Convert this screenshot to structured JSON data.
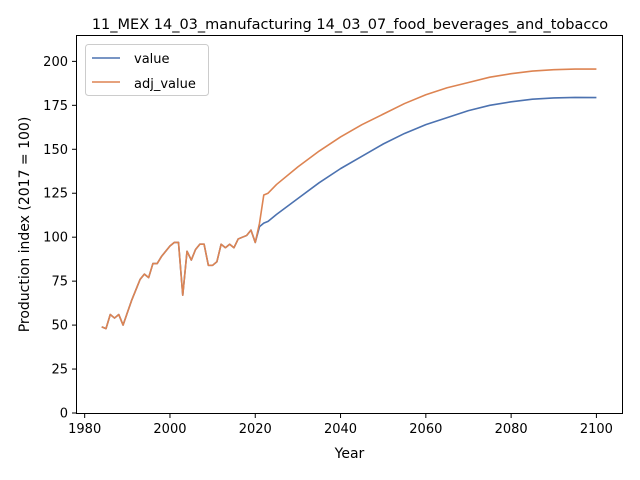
{
  "chart_data": {
    "type": "line",
    "title": "11_MEX 14_03_manufacturing 14_03_07_food_beverages_and_tobacco",
    "xlabel": "Year",
    "ylabel": "Production index (2017 = 100)",
    "xlim": [
      1978.2,
      2106.0
    ],
    "ylim": [
      0,
      215
    ],
    "xticks": [
      1980,
      2000,
      2020,
      2040,
      2060,
      2080,
      2100
    ],
    "yticks": [
      0,
      25,
      50,
      75,
      100,
      125,
      150,
      175,
      200
    ],
    "grid": false,
    "legend": "top-left",
    "series": [
      {
        "name": "value",
        "color": "#4c72b0",
        "x": [
          1984,
          1985,
          1986,
          1987,
          1988,
          1989,
          1990,
          1991,
          1992,
          1993,
          1994,
          1995,
          1996,
          1997,
          1998,
          1999,
          2000,
          2001,
          2002,
          2003,
          2004,
          2005,
          2006,
          2007,
          2008,
          2009,
          2010,
          2011,
          2012,
          2013,
          2014,
          2015,
          2016,
          2017,
          2018,
          2019,
          2020,
          2021,
          2022,
          2023,
          2025,
          2030,
          2035,
          2040,
          2045,
          2050,
          2055,
          2060,
          2065,
          2070,
          2075,
          2080,
          2085,
          2090,
          2095,
          2100
        ],
        "y": [
          49,
          48,
          56,
          54,
          56,
          50,
          57,
          64,
          70,
          76,
          79,
          77,
          85,
          85,
          89,
          92,
          95,
          97,
          97,
          67,
          92,
          87,
          93,
          96,
          96,
          84,
          84,
          86,
          96,
          94,
          96,
          94,
          99,
          100,
          101,
          104,
          97,
          106,
          108,
          109,
          113,
          122,
          131,
          139,
          146,
          153,
          159,
          164,
          168,
          172,
          175,
          177,
          178.5,
          179.2,
          179.5,
          179.4
        ]
      },
      {
        "name": "adj_value",
        "color": "#dd8452",
        "x": [
          1984,
          1985,
          1986,
          1987,
          1988,
          1989,
          1990,
          1991,
          1992,
          1993,
          1994,
          1995,
          1996,
          1997,
          1998,
          1999,
          2000,
          2001,
          2002,
          2003,
          2004,
          2005,
          2006,
          2007,
          2008,
          2009,
          2010,
          2011,
          2012,
          2013,
          2014,
          2015,
          2016,
          2017,
          2018,
          2019,
          2020,
          2021,
          2022,
          2023,
          2025,
          2030,
          2035,
          2040,
          2045,
          2050,
          2055,
          2060,
          2065,
          2070,
          2075,
          2080,
          2085,
          2090,
          2095,
          2100
        ],
        "y": [
          49,
          48,
          56,
          54,
          56,
          50,
          57,
          64,
          70,
          76,
          79,
          77,
          85,
          85,
          89,
          92,
          95,
          97,
          97,
          67,
          92,
          87,
          93,
          96,
          96,
          84,
          84,
          86,
          96,
          94,
          96,
          94,
          99,
          100,
          101,
          104,
          97,
          108,
          124,
          125,
          130,
          140,
          149,
          157,
          164,
          170,
          176,
          181,
          185,
          188,
          191,
          193,
          194.5,
          195.3,
          195.6,
          195.6
        ]
      }
    ]
  }
}
